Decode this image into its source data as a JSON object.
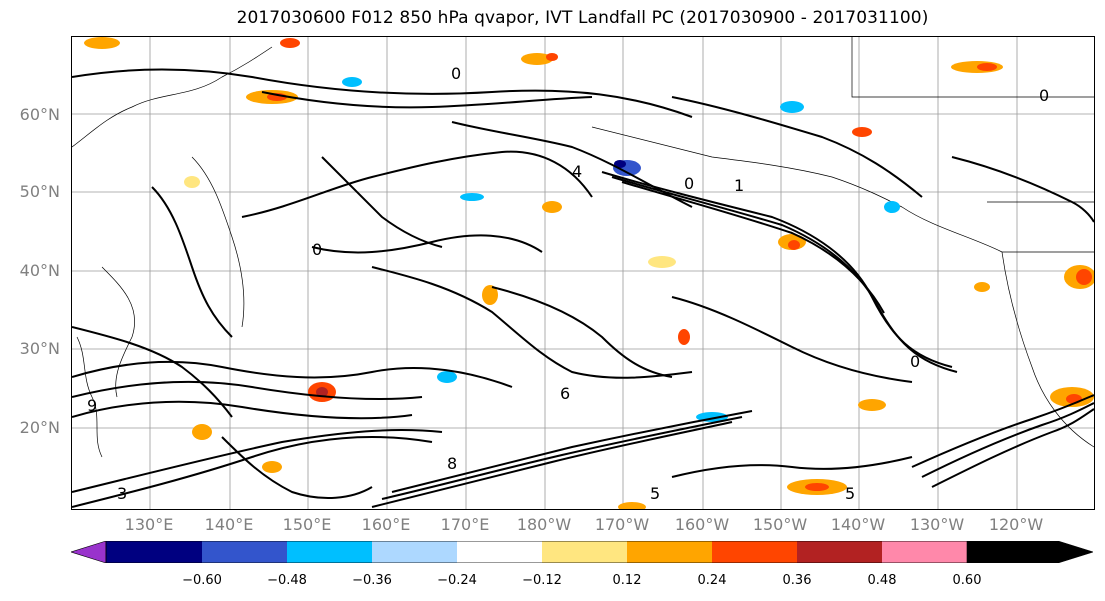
{
  "title": "2017030600 F012 850 hPa qvapor, IVT Landfall PC (2017030900 - 2017031100)",
  "lat_labels": [
    "60°N",
    "50°N",
    "40°N",
    "30°N",
    "20°N"
  ],
  "lon_labels": [
    "130°E",
    "140°E",
    "150°E",
    "160°E",
    "170°E",
    "180°W",
    "170°W",
    "160°W",
    "150°W",
    "140°W",
    "130°W",
    "120°W"
  ],
  "contour_labels": [
    "0",
    "0",
    "0",
    "1",
    "0",
    "6",
    "5",
    "5",
    "8",
    "4",
    "0",
    "9",
    "3"
  ],
  "colorbar": {
    "ticks": [
      "−0.60",
      "−0.48",
      "−0.36",
      "−0.24",
      "−0.12",
      "0.12",
      "0.24",
      "0.36",
      "0.48",
      "0.60"
    ],
    "colors": [
      "#9933cc",
      "#000080",
      "#3355cc",
      "#00bfff",
      "#add8ff",
      "#ffffff",
      "#ffe680",
      "#ffa500",
      "#ff4500",
      "#b22222",
      "#ff88aa"
    ]
  }
}
